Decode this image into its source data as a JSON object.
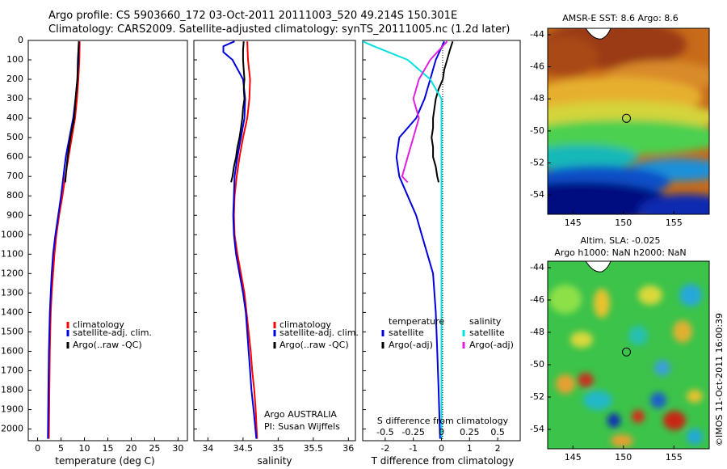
{
  "header": {
    "line1": "Argo profile: CS 5903660_172 03-Oct-2011 20111003_520 49.214S 150.301E",
    "line2": "Climatology: CARS2009. Satellite-adjusted climatology: synTS_20111005.nc (1.2d later)"
  },
  "credit": "©IMOS 11-Oct-2011 16:00:39",
  "colors": {
    "climatology": "#ff0000",
    "satellite": "#0000dd",
    "argo": "#000000",
    "satellite_salinity": "#00e0e0",
    "argo_adj_salinity": "#e020e0"
  },
  "depth_ticks": [
    "0",
    "100",
    "200",
    "300",
    "400",
    "500",
    "600",
    "700",
    "800",
    "900",
    "1000",
    "1100",
    "1200",
    "1300",
    "1400",
    "1500",
    "1600",
    "1700",
    "1800",
    "1900",
    "2000"
  ],
  "chart_data": [
    {
      "type": "line",
      "id": "temperature",
      "xlabel": "temperature (deg C)",
      "xlim": [
        -2,
        32
      ],
      "ylim": [
        2060,
        0
      ],
      "xticks": [
        "0",
        "5",
        "10",
        "15",
        "20",
        "25",
        "30"
      ],
      "legend": [
        "climatology",
        "satellite-adj. clim.",
        "Argo(..raw -QC)"
      ],
      "series": [
        {
          "name": "climatology",
          "color": "#ff0000",
          "depth": [
            5,
            100,
            200,
            300,
            400,
            500,
            600,
            700,
            800,
            900,
            1000,
            1100,
            1200,
            1300,
            1400,
            1500,
            1600,
            1800,
            2050
          ],
          "x": [
            9.0,
            8.9,
            8.7,
            8.4,
            8.0,
            7.3,
            6.6,
            5.9,
            5.3,
            4.6,
            4.0,
            3.6,
            3.3,
            3.0,
            2.8,
            2.7,
            2.6,
            2.5,
            2.4
          ]
        },
        {
          "name": "satellite-adj. clim.",
          "color": "#0000dd",
          "depth": [
            5,
            100,
            200,
            300,
            400,
            500,
            600,
            700,
            800,
            900,
            1000,
            1100,
            1200,
            1300,
            1400,
            1500,
            1600,
            1800,
            2050
          ],
          "x": [
            8.8,
            8.7,
            8.5,
            8.1,
            7.6,
            6.8,
            6.0,
            5.5,
            5.0,
            4.4,
            3.8,
            3.3,
            3.0,
            2.8,
            2.6,
            2.5,
            2.4,
            2.3,
            2.2
          ]
        },
        {
          "name": "Argo(..raw -QC)",
          "color": "#000000",
          "depth": [
            5,
            100,
            200,
            300,
            400,
            500,
            600,
            700,
            730
          ],
          "x": [
            8.8,
            8.6,
            8.5,
            8.1,
            7.8,
            7.0,
            6.4,
            6.0,
            5.9
          ]
        }
      ]
    },
    {
      "type": "line",
      "id": "salinity",
      "xlabel": "salinity",
      "xlim": [
        33.8,
        36.1
      ],
      "ylim": [
        2060,
        0
      ],
      "xticks": [
        "34",
        "34.5",
        "35",
        "35.5",
        "36"
      ],
      "legend": [
        "climatology",
        "satellite-adj. clim.",
        "Argo(..raw -QC)"
      ],
      "annotation": [
        "Argo AUSTRALIA",
        "PI: Susan Wijffels"
      ],
      "series": [
        {
          "name": "climatology",
          "color": "#ff0000",
          "depth": [
            5,
            100,
            200,
            300,
            400,
            500,
            600,
            700,
            800,
            900,
            1000,
            1100,
            1200,
            1300,
            1400,
            1500,
            1600,
            1700,
            1800,
            1900,
            2050
          ],
          "x": [
            34.56,
            34.57,
            34.6,
            34.59,
            34.56,
            34.5,
            34.45,
            34.41,
            34.38,
            34.37,
            34.38,
            34.42,
            34.47,
            34.52,
            34.55,
            34.58,
            34.61,
            34.63,
            34.66,
            34.68,
            34.7
          ]
        },
        {
          "name": "satellite-adj. clim.",
          "color": "#0000dd",
          "depth": [
            5,
            30,
            60,
            100,
            200,
            300,
            400,
            500,
            600,
            700,
            800,
            900,
            1000,
            1100,
            1200,
            1300,
            1400,
            1500,
            1600,
            1700,
            1800,
            1900,
            2050
          ],
          "x": [
            34.38,
            34.22,
            34.22,
            34.35,
            34.5,
            34.53,
            34.52,
            34.47,
            34.42,
            34.38,
            34.37,
            34.36,
            34.37,
            34.4,
            34.45,
            34.5,
            34.54,
            34.56,
            34.58,
            34.6,
            34.62,
            34.65,
            34.69
          ]
        },
        {
          "name": "Argo(..raw -QC)",
          "color": "#000000",
          "depth": [
            5,
            50,
            100,
            150,
            200,
            250,
            300,
            350,
            400,
            450,
            500,
            550,
            600,
            650,
            700,
            730
          ],
          "x": [
            34.51,
            34.5,
            34.5,
            34.51,
            34.52,
            34.51,
            34.52,
            34.5,
            34.49,
            34.47,
            34.45,
            34.42,
            34.4,
            34.37,
            34.35,
            34.33
          ]
        }
      ]
    },
    {
      "type": "line",
      "id": "difference",
      "xlabel": "T difference from climatology",
      "top_axis_label": "S difference from climatology",
      "xlim": [
        -2.8,
        2.8
      ],
      "ylim": [
        2060,
        0
      ],
      "xticks": [
        "-2",
        "-1",
        "0",
        "1",
        "2"
      ],
      "sticks": [
        "-0.5",
        "-0.25",
        "0",
        "0.25",
        "0.5"
      ],
      "legend_temperature": [
        "temperature",
        "satellite",
        "Argo(-adj)"
      ],
      "legend_salinity": [
        "salinity",
        "satellite",
        "Argo(-adj)"
      ],
      "series": [
        {
          "name": "T satellite",
          "color": "#0000dd",
          "depth": [
            5,
            100,
            200,
            300,
            400,
            500,
            600,
            700,
            800,
            900,
            1000,
            1100,
            1200,
            1300,
            1400,
            1600,
            1800,
            2050
          ],
          "x": [
            0.1,
            -0.2,
            -0.4,
            -0.6,
            -0.9,
            -1.5,
            -1.6,
            -1.5,
            -1.2,
            -0.9,
            -0.7,
            -0.5,
            -0.3,
            -0.25,
            -0.2,
            -0.15,
            -0.1,
            -0.05
          ]
        },
        {
          "name": "T Argo(-adj)",
          "color": "#000000",
          "depth": [
            5,
            50,
            100,
            150,
            200,
            250,
            300,
            350,
            400,
            450,
            500,
            550,
            600,
            650,
            700,
            730
          ],
          "x": [
            0.4,
            0.3,
            0.2,
            0.1,
            0.05,
            -0.1,
            -0.2,
            -0.25,
            -0.3,
            -0.3,
            -0.35,
            -0.3,
            -0.3,
            -0.2,
            -0.15,
            -0.1
          ]
        },
        {
          "name": "S satellite",
          "color": "#00e0e0",
          "depth": [
            5,
            30,
            100,
            200,
            300,
            500,
            800,
            1100,
            1400,
            1700,
            2050
          ],
          "x": [
            -0.7,
            -0.6,
            -0.3,
            -0.1,
            0.0,
            0.0,
            0.0,
            0.0,
            0.0,
            0.0,
            0.0
          ]
        },
        {
          "name": "S Argo(-adj)",
          "color": "#e020e0",
          "depth": [
            5,
            100,
            200,
            300,
            400,
            500,
            600,
            700,
            730
          ],
          "x": [
            0.05,
            -0.1,
            -0.2,
            -0.25,
            -0.2,
            -0.25,
            -0.3,
            -0.35,
            -0.3
          ]
        }
      ]
    },
    {
      "type": "heatmap",
      "id": "sst-map",
      "title": "AMSR-E SST: 8.6 Argo: 8.6",
      "xticks": [
        "145",
        "150",
        "155"
      ],
      "yticks": [
        "-44",
        "-46",
        "-48",
        "-50",
        "-52",
        "-54"
      ],
      "lon_range": [
        142.5,
        158.5
      ],
      "lat_range": [
        -55.2,
        -43.6
      ],
      "argo_position": {
        "lon": 150.301,
        "lat": -49.214
      }
    },
    {
      "type": "heatmap",
      "id": "sla-map",
      "title": "Altim. SLA: -0.025",
      "subtitle": "Argo h1000: NaN h2000: NaN",
      "xticks": [
        "145",
        "150",
        "155"
      ],
      "yticks": [
        "-44",
        "-46",
        "-48",
        "-50",
        "-52",
        "-54"
      ],
      "lon_range": [
        142.5,
        158.5
      ],
      "lat_range": [
        -55.2,
        -43.6
      ],
      "argo_position": {
        "lon": 150.301,
        "lat": -49.214
      }
    }
  ]
}
